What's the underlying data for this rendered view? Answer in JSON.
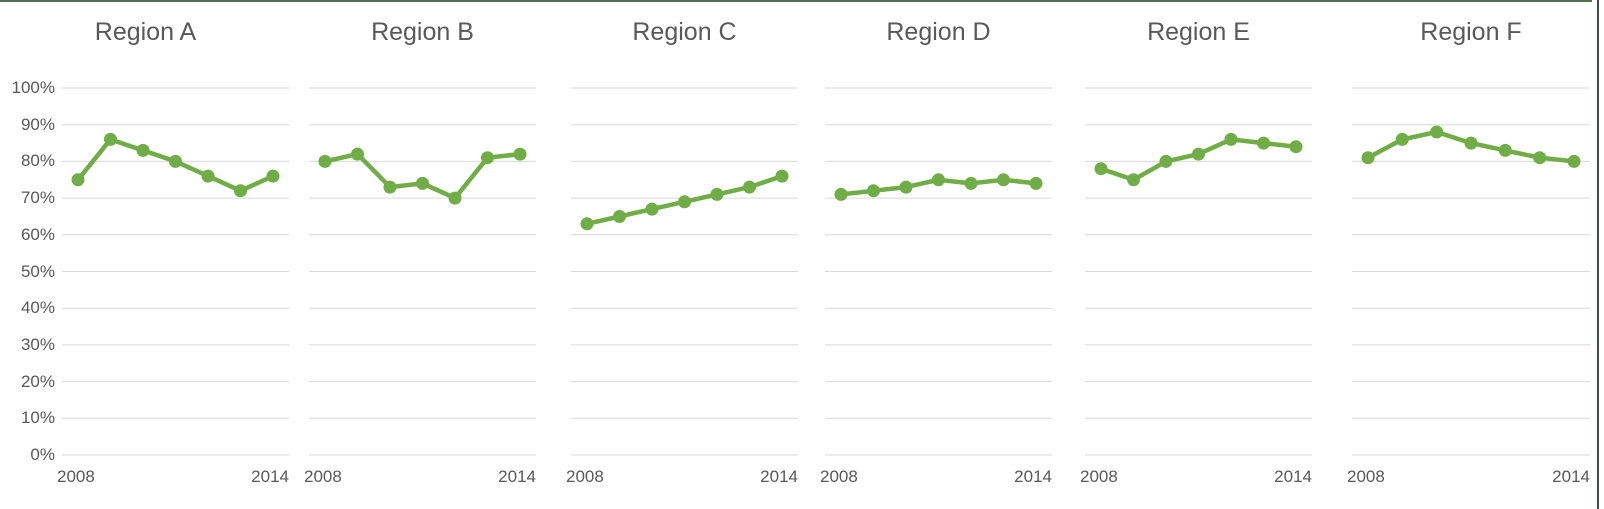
{
  "window": {
    "background": "#ffffff",
    "top_border_color": "#4e7158",
    "right_border_color": "#414f46"
  },
  "axes": {
    "y_tick_labels": [
      "100%",
      "90%",
      "80%",
      "70%",
      "60%",
      "50%",
      "40%",
      "30%",
      "20%",
      "10%",
      "0%"
    ],
    "x_first_label": "2008",
    "x_last_label": "2014",
    "tick_color": "#595959",
    "title_color": "#595959",
    "gridline_color": "#d9d9d9"
  },
  "series_style": {
    "line_color": "#70ad47",
    "marker_shape": "circle"
  },
  "chart_data": [
    {
      "type": "line",
      "title": "Region A",
      "x": [
        2008,
        2009,
        2010,
        2011,
        2012,
        2013,
        2014
      ],
      "values": [
        75,
        86,
        83,
        80,
        76,
        72,
        76
      ],
      "ylim": [
        0,
        100
      ],
      "y_unit": "%",
      "grid": true,
      "legend": false
    },
    {
      "type": "line",
      "title": "Region B",
      "x": [
        2008,
        2009,
        2010,
        2011,
        2012,
        2013,
        2014
      ],
      "values": [
        80,
        82,
        73,
        74,
        70,
        81,
        82
      ],
      "ylim": [
        0,
        100
      ],
      "y_unit": "%",
      "grid": true,
      "legend": false
    },
    {
      "type": "line",
      "title": "Region C",
      "x": [
        2008,
        2009,
        2010,
        2011,
        2012,
        2013,
        2014
      ],
      "values": [
        63,
        65,
        67,
        69,
        71,
        73,
        76
      ],
      "ylim": [
        0,
        100
      ],
      "y_unit": "%",
      "grid": true,
      "legend": false
    },
    {
      "type": "line",
      "title": "Region D",
      "x": [
        2008,
        2009,
        2010,
        2011,
        2012,
        2013,
        2014
      ],
      "values": [
        71,
        72,
        73,
        75,
        74,
        75,
        74
      ],
      "ylim": [
        0,
        100
      ],
      "y_unit": "%",
      "grid": true,
      "legend": false
    },
    {
      "type": "line",
      "title": "Region E",
      "x": [
        2008,
        2009,
        2010,
        2011,
        2012,
        2013,
        2014
      ],
      "values": [
        78,
        75,
        80,
        82,
        86,
        85,
        84
      ],
      "ylim": [
        0,
        100
      ],
      "y_unit": "%",
      "grid": true,
      "legend": false
    },
    {
      "type": "line",
      "title": "Region F",
      "x": [
        2008,
        2009,
        2010,
        2011,
        2012,
        2013,
        2014
      ],
      "values": [
        81,
        86,
        88,
        85,
        83,
        81,
        80
      ],
      "ylim": [
        0,
        100
      ],
      "y_unit": "%",
      "grid": true,
      "legend": false
    }
  ]
}
